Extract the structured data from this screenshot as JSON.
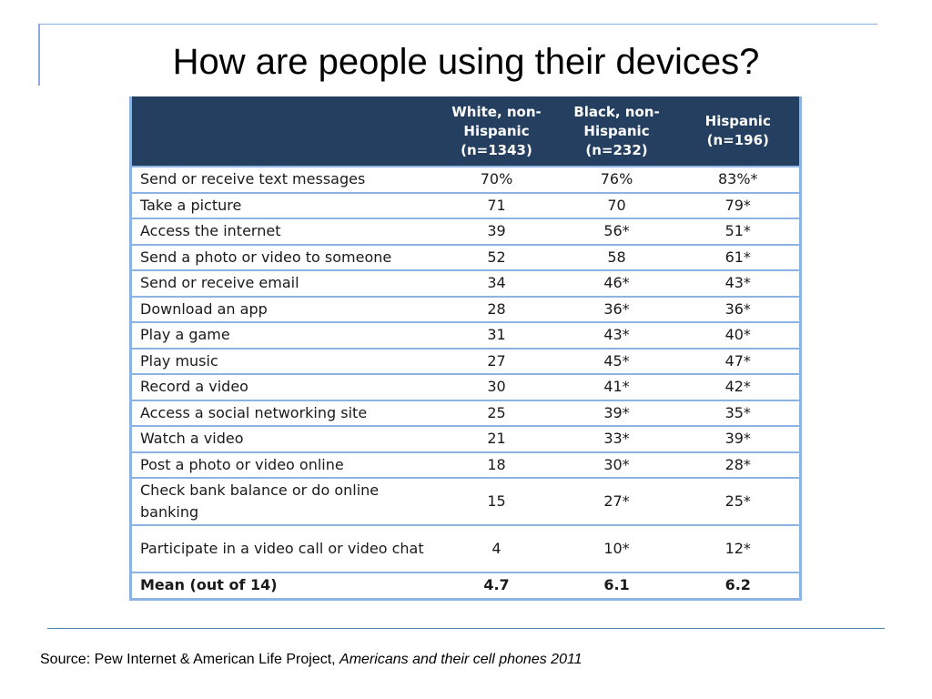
{
  "title": "How are people using their devices?",
  "table": {
    "headers": {
      "white": [
        "White, non-",
        "Hispanic",
        "(n=1343)"
      ],
      "black": [
        "Black, non-",
        "Hispanic",
        "(n=232)"
      ],
      "hispanic": [
        "Hispanic",
        "(n=196)"
      ]
    },
    "rows": [
      {
        "label": "Send or receive text messages",
        "white": "70%",
        "black": "76%",
        "hispanic": "83%*"
      },
      {
        "label": "Take a picture",
        "white": "71",
        "black": "70",
        "hispanic": "79*"
      },
      {
        "label": "Access the internet",
        "white": "39",
        "black": "56*",
        "hispanic": "51*"
      },
      {
        "label": "Send a photo or video to someone",
        "white": "52",
        "black": "58",
        "hispanic": "61*"
      },
      {
        "label": "Send or receive email",
        "white": "34",
        "black": "46*",
        "hispanic": "43*"
      },
      {
        "label": "Download an app",
        "white": "28",
        "black": "36*",
        "hispanic": "36*"
      },
      {
        "label": "Play a game",
        "white": "31",
        "black": "43*",
        "hispanic": "40*"
      },
      {
        "label": "Play music",
        "white": "27",
        "black": "45*",
        "hispanic": "47*"
      },
      {
        "label": "Record a video",
        "white": "30",
        "black": "41*",
        "hispanic": "42*"
      },
      {
        "label": "Access a social networking site",
        "white": "25",
        "black": "39*",
        "hispanic": "35*"
      },
      {
        "label": "Watch a video",
        "white": "21",
        "black": "33*",
        "hispanic": "39*"
      },
      {
        "label": "Post a photo or video online",
        "white": "18",
        "black": "30*",
        "hispanic": "28*"
      },
      {
        "label": "Check bank balance or do online banking",
        "white": "15",
        "black": "27*",
        "hispanic": "25*"
      },
      {
        "label": "Participate in a video call or video chat",
        "white": "4",
        "black": "10*",
        "hispanic": "12*"
      }
    ],
    "mean": {
      "label": "Mean (out of 14)",
      "white": "4.7",
      "black": "6.1",
      "hispanic": "6.2"
    }
  },
  "source": {
    "prefix": "Source: Pew Internet & American Life Project, ",
    "publication": "Americans and their cell phones 2011"
  },
  "colors": {
    "header_bg": "#243f60",
    "border": "#8db3e2",
    "rule": "#4f81bd"
  }
}
